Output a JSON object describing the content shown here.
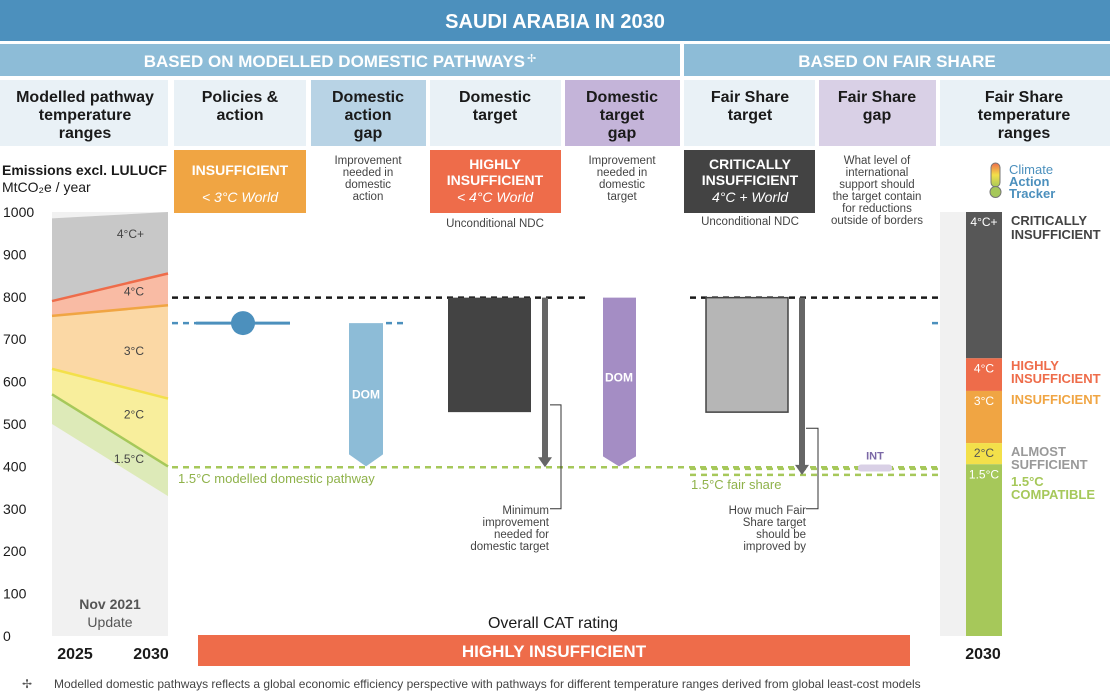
{
  "header": {
    "title": "SAUDI ARABIA IN 2030",
    "left_section": "BASED ON MODELLED DOMESTIC PATHWAYS",
    "left_section_mark": "✢",
    "right_section": "BASED ON FAIR SHARE"
  },
  "columns": {
    "modelled": [
      "Modelled pathway",
      "temperature",
      "ranges"
    ],
    "policies": [
      "Policies &",
      "action"
    ],
    "dom_action_gap": [
      "Domestic",
      "action",
      "gap"
    ],
    "dom_target": [
      "Domestic",
      "target"
    ],
    "dom_target_gap": [
      "Domestic",
      "target",
      "gap"
    ],
    "fs_target": [
      "Fair Share",
      "target"
    ],
    "fs_gap": [
      "Fair Share",
      "gap"
    ],
    "fs_ranges": [
      "Fair Share",
      "temperature",
      "ranges"
    ]
  },
  "axis": {
    "title": "Emissions excl. LULUCF",
    "unit": "MtCO₂e / year",
    "ticks": [
      "1000",
      "900",
      "800",
      "700",
      "600",
      "500",
      "400",
      "300",
      "200",
      "100",
      "0"
    ],
    "x_left": "2025",
    "x_right": "2030",
    "update_line1": "Nov 2021",
    "update_line2": "Update"
  },
  "ratings": {
    "policies": {
      "title": "INSUFFICIENT",
      "world": "< 3°C World",
      "color": "#f0a543"
    },
    "dom_target": {
      "title1": "HIGHLY",
      "title2": "INSUFFICIENT",
      "world": "< 4°C World",
      "color": "#ee6c4a",
      "note": "Unconditional NDC"
    },
    "fs_target": {
      "title1": "CRITICALLY",
      "title2": "INSUFFICIENT",
      "world": "4°C + World",
      "color": "#434343",
      "note": "Unconditional NDC"
    }
  },
  "notes": {
    "dom_action_gap": [
      "Improvement",
      "needed in",
      "domestic",
      "action"
    ],
    "dom_target_gap": [
      "Improvement",
      "needed in",
      "domestic",
      "target"
    ],
    "fs_gap": [
      "What level of",
      "international",
      "support should",
      "the target contain",
      "for reductions",
      "outside of borders"
    ],
    "min_improvement": [
      "Minimum",
      "improvement",
      "needed for",
      "domestic target"
    ],
    "fs_improve": [
      "How much Fair",
      "Share target",
      "should be",
      "improved by"
    ]
  },
  "labels": {
    "modelled_path": "1.5°C modelled domestic pathway",
    "fair_share_path": "1.5°C fair share",
    "dom": "DOM",
    "int": "INT",
    "overall_label": "Overall CAT rating",
    "overall_value": "HIGHLY INSUFFICIENT",
    "footnote_mark": "✢",
    "footnote": "Modelled domestic pathways reflects a global economic efficiency perspective with pathways for different temperature ranges derived from global least-cost models",
    "year_2030": "2030"
  },
  "logo": {
    "line1": "Climate",
    "line2": "Action",
    "line3": "Tracker"
  },
  "chart_data": {
    "type": "bar",
    "title": "SAUDI ARABIA IN 2030",
    "ylabel": "Emissions excl. LULUCF MtCO₂e / year",
    "ylim": [
      0,
      1000
    ],
    "xlim": [
      2025,
      2030
    ],
    "modelled_band_boundaries": [
      {
        "label": "4°C+",
        "y2025": 985,
        "y2030": 1000
      },
      {
        "label": "4°C",
        "y2025": 790,
        "y2030": 855
      },
      {
        "label": "3°C",
        "y2025": 755,
        "y2030": 780
      },
      {
        "label": "2°C",
        "y2025": 630,
        "y2030": 560
      },
      {
        "label": "1.5°C",
        "y2025": 570,
        "y2030": 400
      },
      {
        "label": "",
        "y2025": 500,
        "y2030": 330
      }
    ],
    "modelled_band_labels": [
      "4°C+",
      "4°C",
      "3°C",
      "2°C",
      "1.5°C"
    ],
    "policies_projection": 738,
    "dom_action_gap": [
      738,
      400
    ],
    "dom_target_range": [
      798,
      528
    ],
    "dom_target_arrow": [
      798,
      398
    ],
    "dom_target_gap": [
      798,
      400
    ],
    "fs_target_range": [
      798,
      528
    ],
    "fs_target_arrow": [
      798,
      380
    ],
    "int_value": 395,
    "modelled_1p5_level": 398,
    "fair_share_1p5_level": 380,
    "target_level": 798,
    "fair_share_scale": [
      {
        "label": "4°C+",
        "name": "CRITICALLY INSUFFICIENT",
        "from": 655,
        "to": 1000,
        "color": "#575757"
      },
      {
        "label": "4°C",
        "name": "HIGHLY INSUFFICIENT",
        "from": 578,
        "to": 655,
        "color": "#ee6c4a"
      },
      {
        "label": "3°C",
        "name": "INSUFFICIENT",
        "from": 455,
        "to": 578,
        "color": "#f0a543"
      },
      {
        "label": "2°C",
        "name": "ALMOST SUFFICIENT",
        "from": 405,
        "to": 455,
        "color": "#f3e04a"
      },
      {
        "label": "1.5°C",
        "name": "1.5°C COMPATIBLE",
        "from": 0,
        "to": 405,
        "color": "#a6c85a"
      }
    ]
  }
}
